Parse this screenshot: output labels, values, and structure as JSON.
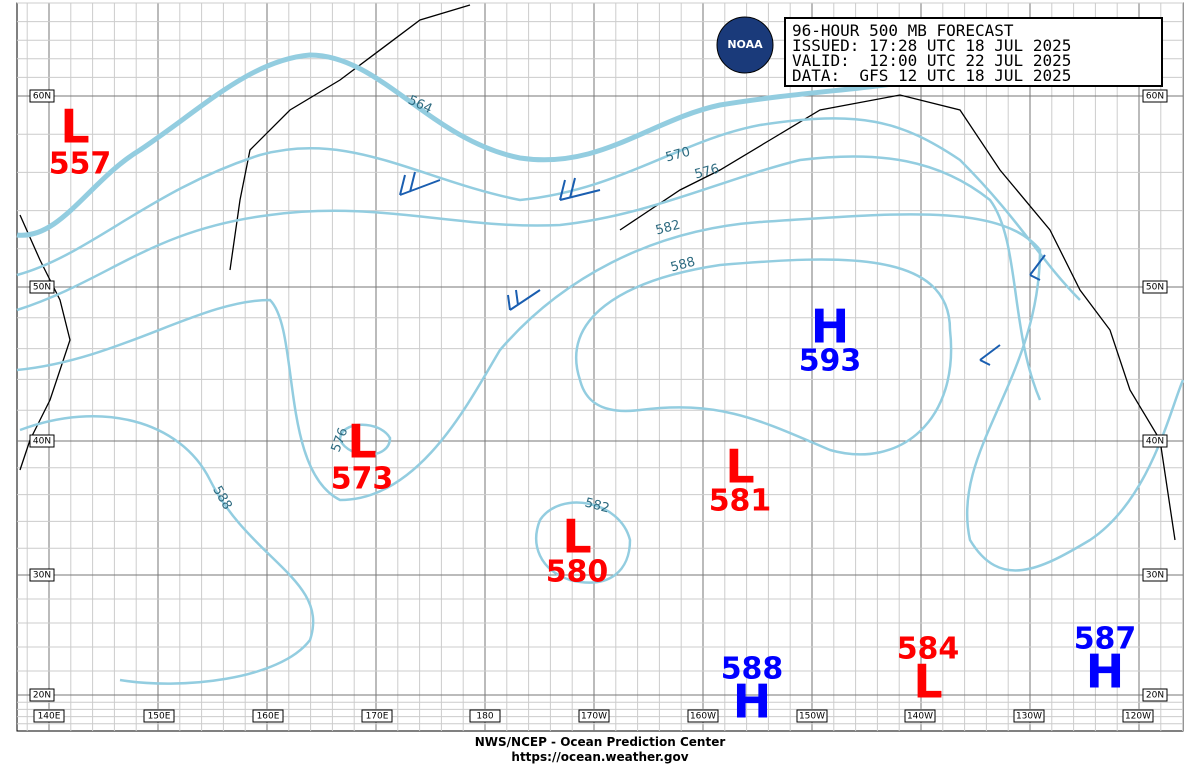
{
  "header": {
    "lines": [
      "96-HOUR 500 MB FORECAST",
      "ISSUED: 17:28 UTC 18 JUL 2025",
      "VALID:  12:00 UTC 22 JUL 2025",
      "DATA:  GFS 12 UTC 18 JUL 2025"
    ]
  },
  "logo": "NOAA",
  "latitudes": [
    "60N",
    "50N",
    "40N",
    "30N",
    "20N"
  ],
  "longitudes": [
    "140E",
    "150E",
    "160E",
    "170E",
    "180",
    "170W",
    "160W",
    "150W",
    "140W",
    "130W",
    "120W"
  ],
  "contour_labels": [
    564,
    570,
    576,
    582,
    588,
    576,
    588,
    582
  ],
  "centers": [
    {
      "type": "L",
      "value": 557
    },
    {
      "type": "L",
      "value": 573
    },
    {
      "type": "L",
      "value": 580
    },
    {
      "type": "L",
      "value": 581
    },
    {
      "type": "H",
      "value": 593
    },
    {
      "type": "H",
      "value": 588
    },
    {
      "type": "L",
      "value": 584
    },
    {
      "type": "H",
      "value": 587
    }
  ],
  "footer": [
    "NWS/NCEP - Ocean Prediction Center",
    "https://ocean.weather.gov"
  ]
}
